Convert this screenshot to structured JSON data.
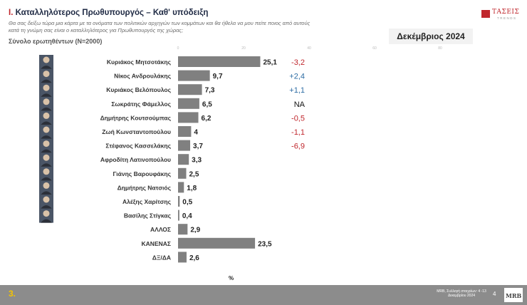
{
  "header": {
    "title_number": "I.",
    "title": "Καταλληλότερος  Πρωθυπουργός – Καθ' υπόδειξη",
    "question": "Θα σας δείξω τώρα μια κάρτα με τα ονόματα των πολιτικών αρχηγών των κομμάτων και θα ήθελα να μου πείτε ποιος από αυτούς κατά τη γνώμη σας είναι ο καταλληλότερος για Πρωθυπουργός της χώρας;",
    "respondents": "Σύνολο ερωτηθέντων (N=2000)",
    "period": "Δεκέμβριος 2024"
  },
  "logo": {
    "name": "ΤΑΣΕΙΣ",
    "sub": "TRENDS"
  },
  "chart_data": {
    "type": "bar",
    "orientation": "horizontal",
    "categories": [
      "Κυριάκος Μητσοτάκης",
      "Νίκος Ανδρουλάκης",
      "Κυριάκος Βελόπουλος",
      "Σωκράτης Φάμελλος",
      "Δημήτρης Κουτσούμπας",
      "Ζωή Κωνσταντοπούλου",
      "Στέφανος Κασσελάκης",
      "Αφροδίτη Λατινοπούλου",
      "Γιάνης Βαρουφάκης",
      "Δημήτρης Νατσιός",
      "Αλέξης Χαρίτσης",
      "Βασίλης Στίγκας",
      "ΑΛΛΟΣ",
      "ΚΑΝΕΝΑΣ",
      "ΔΞ/ΔΑ"
    ],
    "values": [
      25.1,
      9.7,
      7.3,
      6.5,
      6.2,
      4,
      3.7,
      3.3,
      2.5,
      1.8,
      0.5,
      0.4,
      2.9,
      23.5,
      2.6
    ],
    "value_labels": [
      "25,1",
      "9,7",
      "7,3",
      "6,5",
      "6,2",
      "4",
      "3,7",
      "3,3",
      "2,5",
      "1,8",
      "0,5",
      "0,4",
      "2,9",
      "23,5",
      "2,6"
    ],
    "changes": [
      "-3,2",
      "+2,4",
      "+1,1",
      "NA",
      "-0,5",
      "-1,1",
      "-6,9",
      "",
      "",
      "",
      "",
      "",
      "",
      "",
      ""
    ],
    "change_colors": {
      "negative": "#c0272d",
      "positive": "#2e6da4",
      "neutral": "#111111"
    },
    "x_ticks": [
      "0",
      "20",
      "40",
      "60",
      "80"
    ],
    "xlim": [
      0,
      80
    ],
    "unit_label": "%",
    "bar_color": "#808080",
    "photo_count": 12
  },
  "footer": {
    "slide_number": "3.",
    "source": "MRB, Συλλογή στοιχείων: 4 -13 Δεκεμβρίου 2024",
    "page": "4",
    "brand": "MRB"
  }
}
